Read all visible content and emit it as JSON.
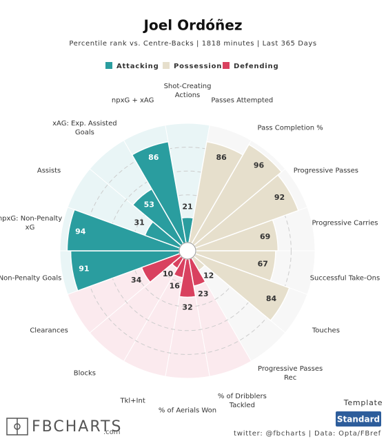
{
  "chart_data": {
    "type": "pizza",
    "title": "Joel Ordóñez",
    "subtitle": "Percentile rank vs. Centre-Backs | 1818 minutes | Last 365 Days",
    "rlim": [
      0,
      100
    ],
    "rticks": [
      20,
      40,
      60,
      80
    ],
    "series": [
      {
        "name": "Attacking",
        "color": "#2a9d9f",
        "background": "#e9f5f6",
        "categories": [
          "Non-Penalty Goals",
          "npxG: Non-Penalty xG",
          "Assists",
          "xAG: Exp. Assisted Goals",
          "npxG + xAG",
          "Shot-Creating Actions"
        ],
        "values": [
          91,
          94,
          31,
          53,
          86,
          21
        ]
      },
      {
        "name": "Possession",
        "color": "#e6dfcc",
        "background": "#f7f7f7",
        "categories": [
          "Passes Attempted",
          "Pass Completion %",
          "Progressive Passes",
          "Progressive Carries",
          "Successful Take-Ons",
          "Touches",
          "Progressive Passes Rec"
        ],
        "values": [
          86,
          96,
          92,
          69,
          67,
          84,
          12
        ]
      },
      {
        "name": "Defending",
        "color": "#d9415f",
        "background": "#fbeaee",
        "categories": [
          "% of Dribblers Tackled",
          "% of Aerials Won",
          "Tkl+Int",
          "Blocks",
          "Clearances"
        ],
        "values": [
          23,
          32,
          16,
          10,
          34
        ]
      }
    ]
  },
  "footer": {
    "logo": "FBCHARTS",
    "logo_suffix": ".com",
    "template_label": "Template",
    "template": "Standard",
    "credits": "twitter: @fbcharts | Data: Opta/FBref"
  }
}
